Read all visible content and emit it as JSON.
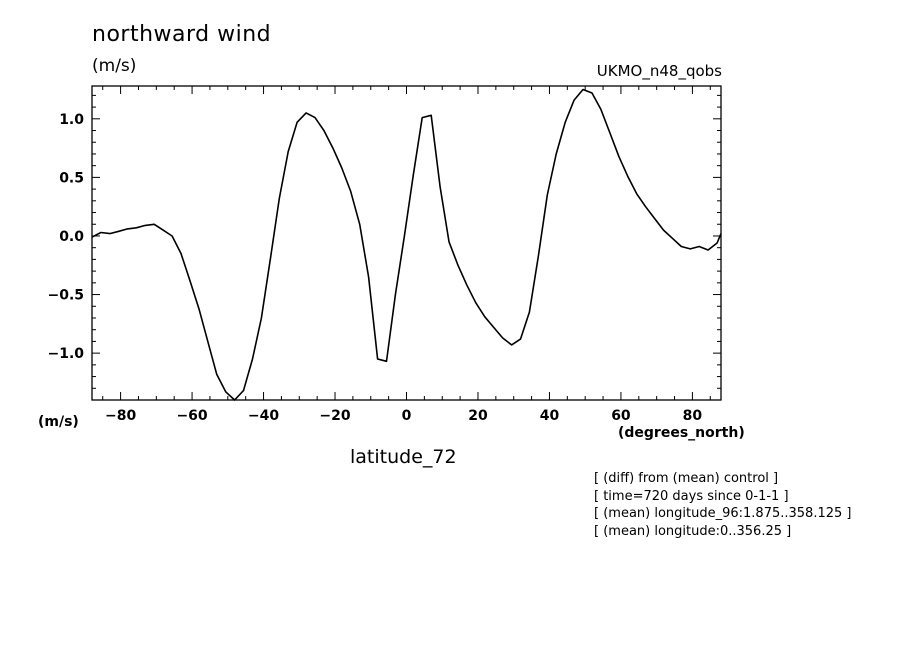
{
  "chart_data": {
    "type": "line",
    "title": "northward wind",
    "units": "(m/s)",
    "dataset": "UKMO_n48_qobs",
    "ylabel": "(m/s)",
    "xlabel": "latitude_72",
    "xunits": "(degrees_north)",
    "xlim": [
      -88,
      88
    ],
    "ylim": [
      -1.4,
      1.28
    ],
    "xticks": [
      -80,
      -60,
      -40,
      -20,
      0,
      20,
      40,
      60,
      80
    ],
    "xtick_labels": [
      "−80",
      "−60",
      "−40",
      "−20",
      "0",
      "20",
      "40",
      "60",
      "80"
    ],
    "yticks": [
      1.0,
      0.5,
      0.0,
      -0.5,
      -1.0
    ],
    "ytick_labels": [
      "1.0",
      "0.5",
      "0.0",
      "−0.5",
      "−1.0"
    ],
    "grid": false,
    "series": [
      {
        "x": [
          -88.0,
          -85.5,
          -83.0,
          -80.5,
          -78.1,
          -75.6,
          -73.1,
          -70.6,
          -68.1,
          -65.6,
          -63.1,
          -60.6,
          -58.1,
          -55.6,
          -53.1,
          -50.6,
          -48.1,
          -45.6,
          -43.1,
          -40.6,
          -38.1,
          -35.6,
          -33.1,
          -30.6,
          -28.1,
          -25.6,
          -23.1,
          -20.6,
          -18.1,
          -15.6,
          -13.1,
          -10.6,
          -8.1,
          -5.6,
          -3.1,
          -0.6,
          1.9,
          4.4,
          6.9,
          9.4,
          11.9,
          14.4,
          16.9,
          19.4,
          21.9,
          24.4,
          26.9,
          29.4,
          31.9,
          34.4,
          36.9,
          39.4,
          41.9,
          44.4,
          46.9,
          49.4,
          51.9,
          54.4,
          56.9,
          59.4,
          61.9,
          64.4,
          66.9,
          69.4,
          71.9,
          74.4,
          76.9,
          79.4,
          81.9,
          84.4,
          86.9,
          88.0
        ],
        "y": [
          -0.01,
          0.03,
          0.02,
          0.04,
          0.06,
          0.07,
          0.09,
          0.1,
          0.05,
          0.0,
          -0.15,
          -0.38,
          -0.62,
          -0.9,
          -1.18,
          -1.33,
          -1.4,
          -1.32,
          -1.05,
          -0.7,
          -0.2,
          0.32,
          0.72,
          0.97,
          1.05,
          1.01,
          0.9,
          0.75,
          0.58,
          0.38,
          0.1,
          -0.35,
          -1.05,
          -1.07,
          -0.5,
          0.0,
          0.52,
          1.01,
          1.03,
          0.42,
          -0.05,
          -0.25,
          -0.42,
          -0.57,
          -0.69,
          -0.78,
          -0.87,
          -0.93,
          -0.88,
          -0.65,
          -0.17,
          0.35,
          0.7,
          0.97,
          1.16,
          1.25,
          1.22,
          1.08,
          0.88,
          0.68,
          0.51,
          0.36,
          0.25,
          0.15,
          0.05,
          -0.02,
          -0.09,
          -0.11,
          -0.09,
          -0.12,
          -0.06,
          0.02
        ]
      }
    ]
  },
  "notes": [
    "[ (diff) from (mean) control ]",
    "[ time=720 days since 0-1-1 ]",
    "[ (mean) longitude_96:1.875..358.125 ]",
    "[ (mean) longitude:0..356.25 ]"
  ]
}
